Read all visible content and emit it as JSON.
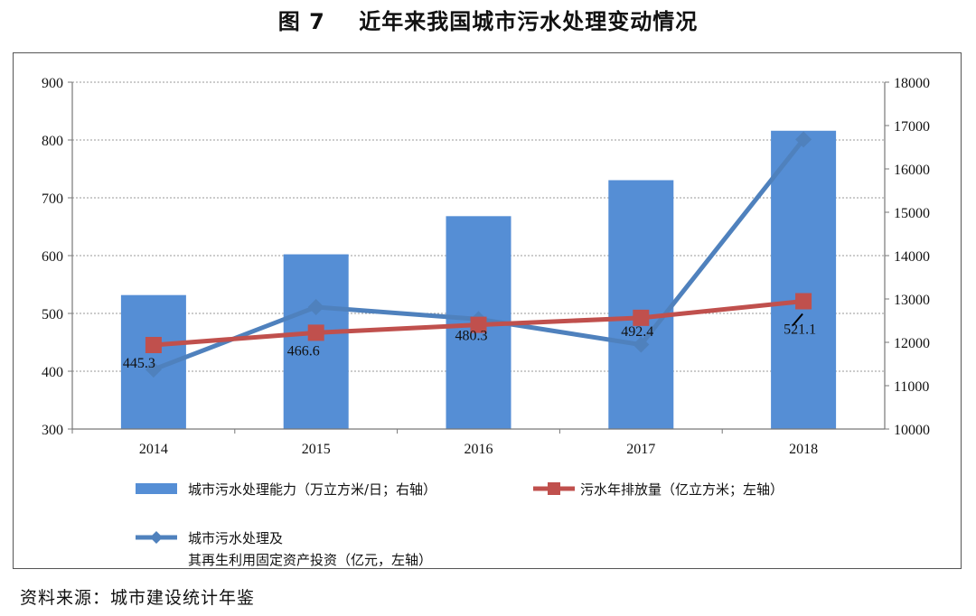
{
  "figure_title": "图 7    近年来我国城市污水处理变动情况",
  "source_note": "资料来源：城市建设统计年鉴",
  "colors": {
    "bars": "#558ed5",
    "emission_line": "#c0504d",
    "investment_line": "#4f81bd",
    "grid": "#9a9a9a"
  },
  "chart_data": {
    "type": "bar",
    "categories": [
      "2014",
      "2015",
      "2016",
      "2017",
      "2018"
    ],
    "y_left": {
      "ticks": [
        "300",
        "400",
        "500",
        "600",
        "700",
        "800",
        "900"
      ],
      "range": [
        300,
        900
      ]
    },
    "y_right": {
      "ticks": [
        "10000",
        "11000",
        "12000",
        "13000",
        "14000",
        "15000",
        "16000",
        "17000",
        "18000"
      ],
      "range": [
        10000,
        18000
      ]
    },
    "grid": true,
    "legend_position": "bottom",
    "series": [
      {
        "name": "城市污水处理能力（万立方米/日；右轴）",
        "type": "bar",
        "axis": "right",
        "values": [
          13090,
          14030,
          14910,
          15740,
          16880
        ]
      },
      {
        "name": "污水年排放量（亿立方米；左轴）",
        "type": "line",
        "axis": "left",
        "marker": "square",
        "values": [
          445.3,
          466.6,
          480.3,
          492.4,
          521.1
        ],
        "labels": [
          "445.3",
          "466.6",
          "480.3",
          "492.4",
          "521.1"
        ]
      },
      {
        "name": "城市污水处理及其再生利用固定资产投资（亿元，左轴）",
        "legend_lines": [
          "城市污水处理及",
          "其再生利用固定资产投资（亿元，左轴）"
        ],
        "type": "line",
        "axis": "left",
        "marker": "diamond",
        "values": [
          403,
          511,
          490,
          446,
          801
        ]
      }
    ]
  }
}
